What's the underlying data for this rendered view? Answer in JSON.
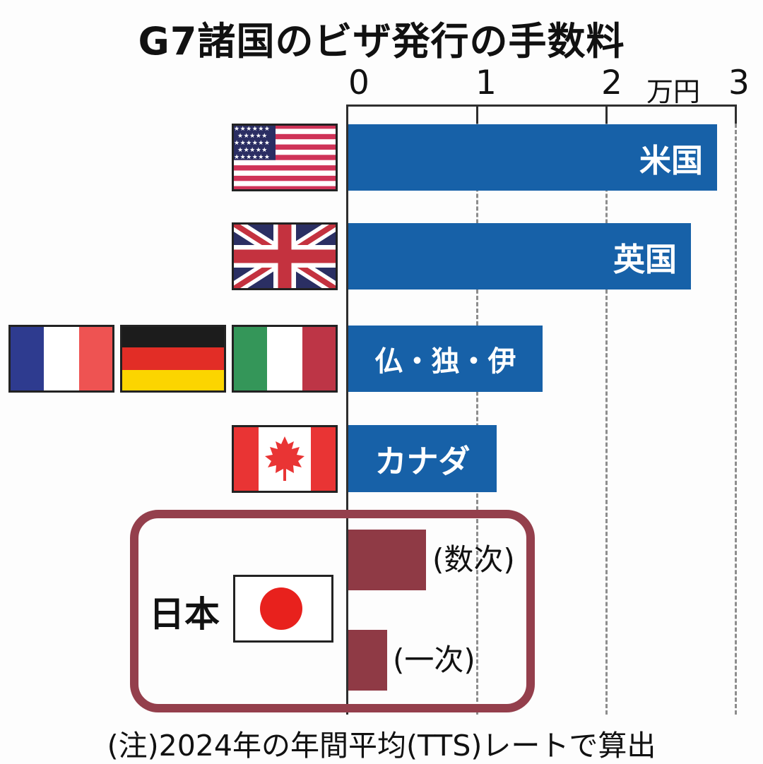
{
  "title": "G7諸国のビザ発行の手数料",
  "axis": {
    "ticks": [
      "0",
      "1",
      "2",
      "3"
    ],
    "unit_label": "万円"
  },
  "bars": {
    "usa": {
      "label": "米国",
      "value": 2.85
    },
    "uk": {
      "label": "英国",
      "value": 2.65
    },
    "fr_de_it": {
      "label": "仏・独・伊",
      "value": 1.5
    },
    "canada": {
      "label": "カナダ",
      "value": 1.15
    },
    "japan_multiple": {
      "label": "(数次)",
      "value": 0.6
    },
    "japan_single": {
      "label": "(一次)",
      "value": 0.3
    }
  },
  "japan_group_label": "日本",
  "note": "(注)2024年の年間平均(TTS)レートで算出",
  "colors": {
    "bar_blue": "#1761a8",
    "japan_bar_red": "#8f3a45",
    "japan_box_border": "#943f4c"
  },
  "chart_data": {
    "type": "bar",
    "orientation": "horizontal",
    "title": "G7諸国のビザ発行の手数料",
    "categories": [
      "米国",
      "英国",
      "仏・独・伊",
      "カナダ",
      "日本(数次)",
      "日本(一次)"
    ],
    "values": [
      2.85,
      2.65,
      1.5,
      1.15,
      0.6,
      0.3
    ],
    "unit": "万円",
    "xlabel": "万円",
    "xlim": [
      0,
      3
    ],
    "x_ticks": [
      0,
      1,
      2,
      3
    ],
    "grid": "vertical-dashed",
    "legend": "none",
    "bar_colors": [
      "#1761a8",
      "#1761a8",
      "#1761a8",
      "#1761a8",
      "#8f3a45",
      "#8f3a45"
    ],
    "note": "(注)2024年の年間平均(TTS)レートで算出"
  }
}
